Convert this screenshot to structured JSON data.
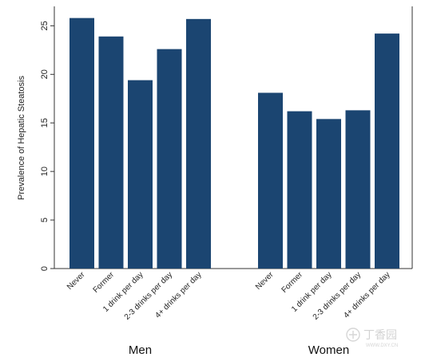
{
  "chart_data": {
    "type": "bar",
    "ylabel": "Prevalence of Hepatic Steatosis",
    "ylim": [
      0,
      27
    ],
    "yticks": [
      0,
      5,
      10,
      15,
      20,
      25
    ],
    "grid": false,
    "bar_color": "#1b4571",
    "groups": [
      {
        "name": "Men",
        "categories": [
          "Never",
          "Former",
          "1 drink per day",
          "2-3  drinks per day",
          "4+ drinks per day"
        ],
        "values": [
          25.8,
          23.9,
          19.4,
          22.6,
          25.7
        ]
      },
      {
        "name": "Women",
        "categories": [
          "Never",
          "Former",
          "1  drink per day",
          "2-3  drinks per day",
          "4+ drinks per day"
        ],
        "values": [
          18.1,
          16.2,
          15.4,
          16.3,
          24.2
        ]
      }
    ]
  },
  "watermark": {
    "text": "丁香园",
    "sub": "WWW.DXY.CN",
    "color": "#cfcfcf",
    "icon": "dxy-logo-icon"
  }
}
